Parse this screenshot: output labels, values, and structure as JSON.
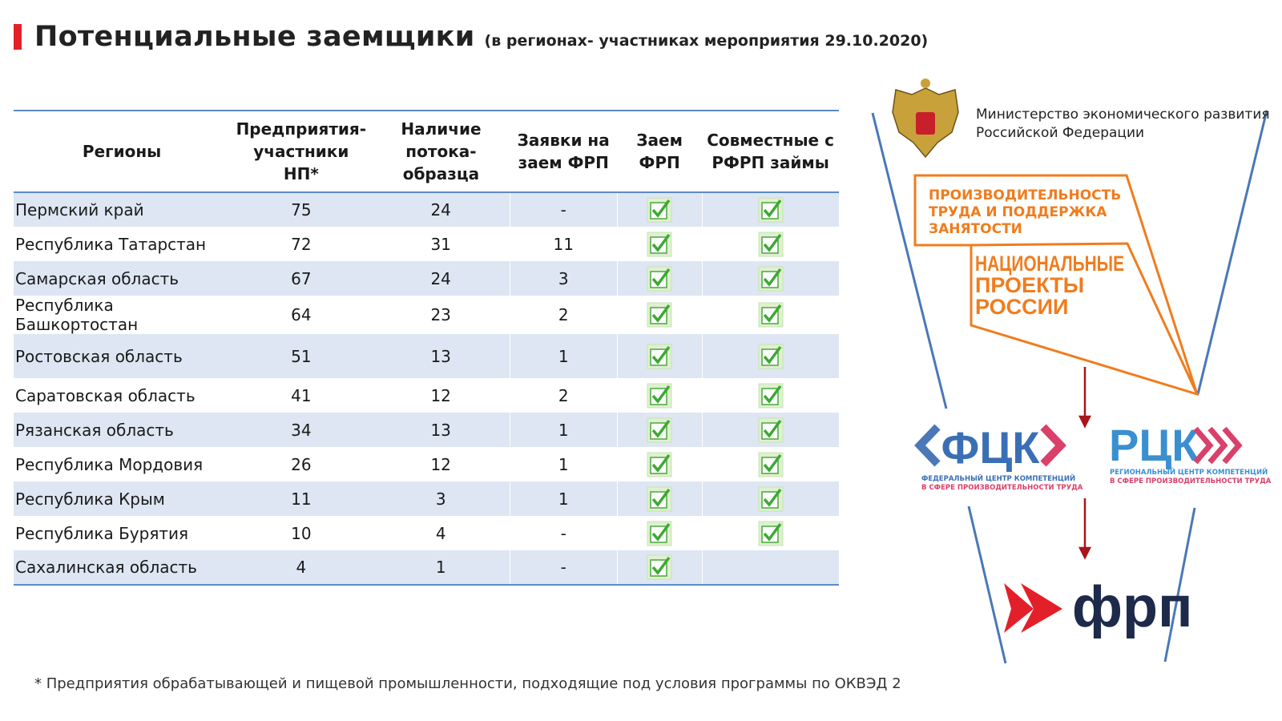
{
  "header": {
    "title": "Потенциальные заемщики",
    "subtitle": "(в регионах- участниках мероприятия 29.10.2020)"
  },
  "table": {
    "columns": [
      "Регионы",
      "Предприятия-участники НП*",
      "Наличие потока-образца",
      "Заявки на заем ФРП",
      "Заем ФРП",
      "Совместные с РФРП займы"
    ],
    "rows": [
      {
        "region": "Пермский край",
        "enterprises": 75,
        "streams": 24,
        "applications": "-",
        "frp_loan": true,
        "joint_loan": true
      },
      {
        "region": "Республика Татарстан",
        "enterprises": 72,
        "streams": 31,
        "applications": 11,
        "frp_loan": true,
        "joint_loan": true
      },
      {
        "region": "Самарская область",
        "enterprises": 67,
        "streams": 24,
        "applications": 3,
        "frp_loan": true,
        "joint_loan": true
      },
      {
        "region": "Республика Башкортостан",
        "enterprises": 64,
        "streams": 23,
        "applications": 2,
        "frp_loan": true,
        "joint_loan": true
      },
      {
        "region": "Ростовская область",
        "enterprises": 51,
        "streams": 13,
        "applications": 1,
        "frp_loan": true,
        "joint_loan": true
      },
      {
        "region": "Саратовская область",
        "enterprises": 41,
        "streams": 12,
        "applications": 2,
        "frp_loan": true,
        "joint_loan": true
      },
      {
        "region": "Рязанская область",
        "enterprises": 34,
        "streams": 13,
        "applications": 1,
        "frp_loan": true,
        "joint_loan": true
      },
      {
        "region": "Республика Мордовия",
        "enterprises": 26,
        "streams": 12,
        "applications": 1,
        "frp_loan": true,
        "joint_loan": true
      },
      {
        "region": "Республика Крым",
        "enterprises": 11,
        "streams": 3,
        "applications": 1,
        "frp_loan": true,
        "joint_loan": true
      },
      {
        "region": "Республика Бурятия",
        "enterprises": 10,
        "streams": 4,
        "applications": "-",
        "frp_loan": true,
        "joint_loan": true
      },
      {
        "region": "Сахалинская область",
        "enterprises": 4,
        "streams": 1,
        "applications": "-",
        "frp_loan": true,
        "joint_loan": false
      }
    ]
  },
  "logos": {
    "ministry": [
      "Министерство экономического развития",
      "Российской Федерации"
    ],
    "project": [
      "ПРОИЗВОДИТЕЛЬНОСТЬ",
      "ТРУДА И ПОДДЕРЖКА",
      "ЗАНЯТОСТИ"
    ],
    "national": [
      "НАЦИОНАЛЬНЫЕ",
      "ПРОЕКТЫ",
      "РОССИИ"
    ],
    "fck": {
      "name": "ФЦК",
      "lines": [
        "ФЕДЕРАЛЬНЫЙ ЦЕНТР КОМПЕТЕНЦИЙ",
        "В СФЕРЕ ПРОИЗВОДИТЕЛЬНОСТИ ТРУДА"
      ]
    },
    "rck": {
      "name": "РЦК",
      "lines": [
        "РЕГИОНАЛЬНЫЙ ЦЕНТР КОМПЕТЕНЦИЙ",
        "В СФЕРЕ ПРОИЗВОДИТЕЛЬНОСТИ ТРУДА"
      ]
    },
    "frp": "фрп"
  },
  "footnote": "* Предприятия обрабатывающей и пищевой промышленности, подходящие под условия программы по ОКВЭД 2"
}
